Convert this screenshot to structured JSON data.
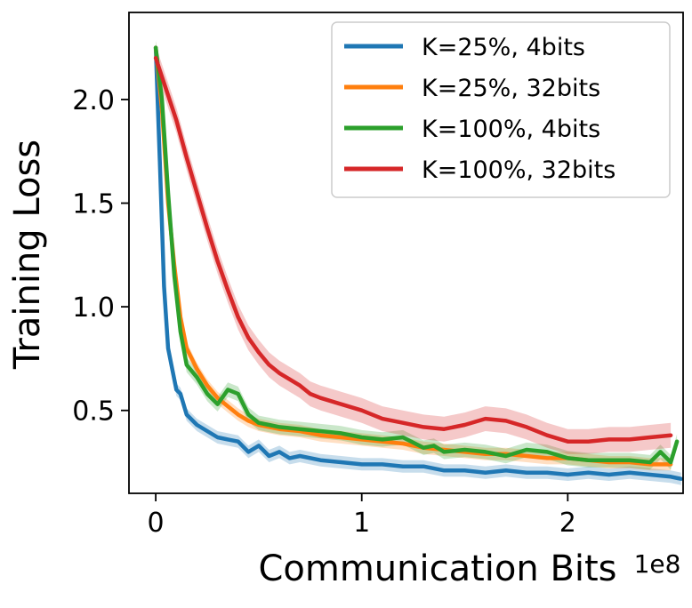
{
  "chart_data": {
    "type": "line",
    "title": "",
    "xlabel": "Communication Bits",
    "ylabel": "Training Loss",
    "x_offset_label": "1e8",
    "xlim": [
      -0.13,
      2.56
    ],
    "ylim": [
      0.1,
      2.42
    ],
    "x_ticks": [
      0,
      1,
      2
    ],
    "x_tick_labels": [
      "0",
      "1",
      "2"
    ],
    "y_ticks": [
      0.5,
      1.0,
      1.5,
      2.0
    ],
    "y_tick_labels": [
      "0.5",
      "1.0",
      "1.5",
      "2.0"
    ],
    "legend_position": "upper right",
    "series": [
      {
        "name": "K=25%, 4bits",
        "color": "#1f77b4",
        "x": [
          0,
          0.02,
          0.04,
          0.06,
          0.08,
          0.1,
          0.12,
          0.15,
          0.2,
          0.25,
          0.3,
          0.35,
          0.4,
          0.45,
          0.5,
          0.55,
          0.6,
          0.65,
          0.7,
          0.8,
          0.9,
          1.0,
          1.1,
          1.2,
          1.3,
          1.4,
          1.5,
          1.6,
          1.7,
          1.8,
          1.9,
          2.0,
          2.1,
          2.2,
          2.3,
          2.4,
          2.5,
          2.55
        ],
        "y": [
          2.25,
          1.7,
          1.1,
          0.8,
          0.7,
          0.6,
          0.58,
          0.48,
          0.43,
          0.4,
          0.37,
          0.36,
          0.35,
          0.3,
          0.33,
          0.28,
          0.3,
          0.27,
          0.28,
          0.26,
          0.25,
          0.24,
          0.24,
          0.23,
          0.23,
          0.21,
          0.21,
          0.2,
          0.21,
          0.2,
          0.2,
          0.19,
          0.2,
          0.19,
          0.2,
          0.19,
          0.18,
          0.17
        ],
        "band": 0.03
      },
      {
        "name": "K=25%, 32bits",
        "color": "#ff7f0e",
        "x": [
          0,
          0.03,
          0.06,
          0.09,
          0.12,
          0.15,
          0.2,
          0.25,
          0.3,
          0.35,
          0.4,
          0.45,
          0.5,
          0.6,
          0.7,
          0.8,
          0.9,
          1.0,
          1.1,
          1.2,
          1.3,
          1.4,
          1.5,
          1.6,
          1.7,
          1.8,
          1.9,
          2.0,
          2.1,
          2.2,
          2.3,
          2.4,
          2.5
        ],
        "y": [
          2.25,
          1.95,
          1.5,
          1.2,
          0.95,
          0.8,
          0.7,
          0.62,
          0.56,
          0.52,
          0.48,
          0.45,
          0.43,
          0.41,
          0.4,
          0.38,
          0.37,
          0.36,
          0.35,
          0.34,
          0.32,
          0.31,
          0.3,
          0.29,
          0.29,
          0.28,
          0.27,
          0.27,
          0.26,
          0.25,
          0.25,
          0.24,
          0.24
        ],
        "band": 0.03
      },
      {
        "name": "K=100%, 4bits",
        "color": "#2ca02c",
        "x": [
          0,
          0.03,
          0.06,
          0.09,
          0.12,
          0.15,
          0.2,
          0.25,
          0.3,
          0.35,
          0.4,
          0.45,
          0.5,
          0.55,
          0.6,
          0.7,
          0.8,
          0.9,
          1.0,
          1.1,
          1.2,
          1.3,
          1.35,
          1.4,
          1.5,
          1.6,
          1.7,
          1.8,
          1.9,
          2.0,
          2.1,
          2.2,
          2.3,
          2.4,
          2.45,
          2.5,
          2.53
        ],
        "y": [
          2.25,
          2.0,
          1.55,
          1.15,
          0.88,
          0.72,
          0.66,
          0.58,
          0.53,
          0.6,
          0.58,
          0.48,
          0.44,
          0.43,
          0.42,
          0.41,
          0.4,
          0.39,
          0.37,
          0.36,
          0.37,
          0.32,
          0.33,
          0.3,
          0.31,
          0.3,
          0.28,
          0.31,
          0.3,
          0.27,
          0.26,
          0.26,
          0.26,
          0.25,
          0.3,
          0.25,
          0.35
        ],
        "band": 0.035
      },
      {
        "name": "K=100%, 32bits",
        "color": "#d62728",
        "x": [
          0,
          0.05,
          0.1,
          0.15,
          0.2,
          0.25,
          0.3,
          0.35,
          0.4,
          0.45,
          0.5,
          0.55,
          0.6,
          0.65,
          0.7,
          0.75,
          0.8,
          0.9,
          1.0,
          1.1,
          1.2,
          1.3,
          1.4,
          1.5,
          1.6,
          1.7,
          1.8,
          1.9,
          2.0,
          2.1,
          2.2,
          2.3,
          2.4,
          2.5
        ],
        "y": [
          2.2,
          2.05,
          1.9,
          1.72,
          1.55,
          1.38,
          1.22,
          1.08,
          0.95,
          0.85,
          0.78,
          0.72,
          0.68,
          0.65,
          0.62,
          0.58,
          0.56,
          0.53,
          0.5,
          0.46,
          0.44,
          0.42,
          0.41,
          0.43,
          0.46,
          0.45,
          0.42,
          0.38,
          0.35,
          0.35,
          0.36,
          0.36,
          0.37,
          0.38
        ],
        "band": 0.06
      }
    ]
  }
}
